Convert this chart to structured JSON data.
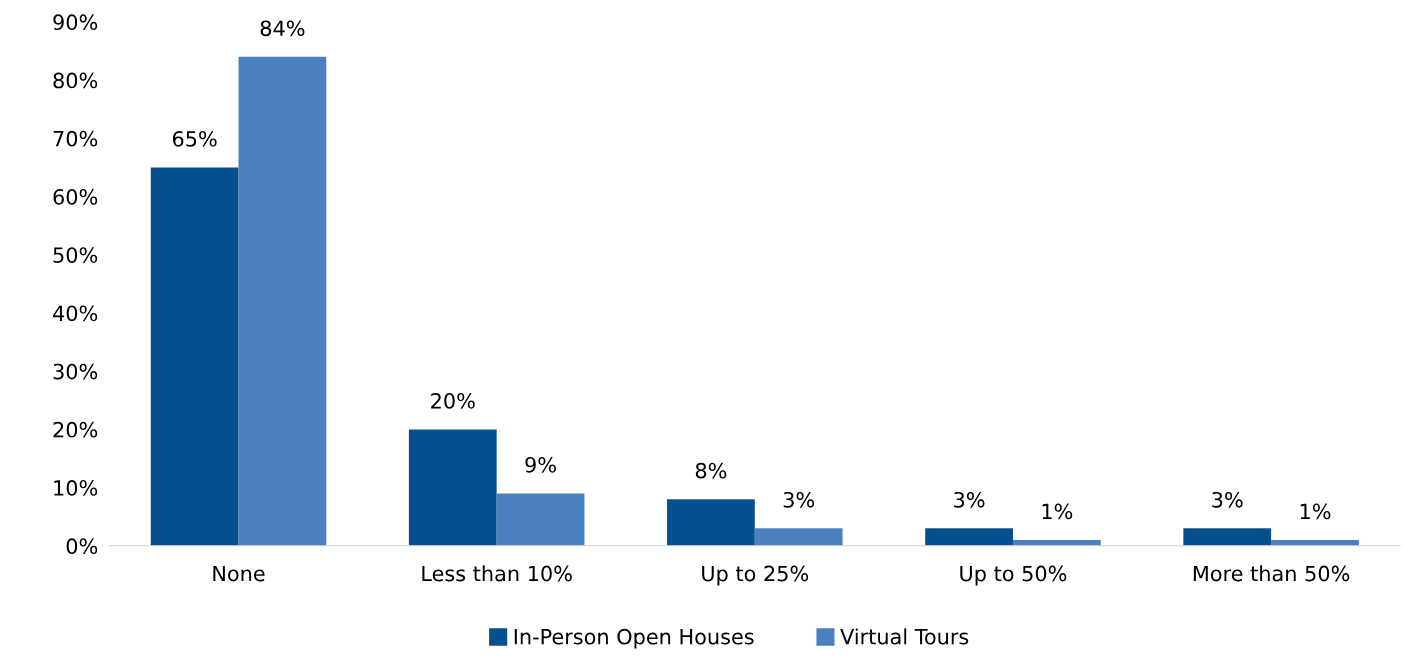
{
  "chart_data": {
    "type": "bar",
    "categories": [
      "None",
      "Less than 10%",
      "Up to 25%",
      "Up to 50%",
      "More than 50%"
    ],
    "series": [
      {
        "name": "In-Person Open Houses",
        "color": "#07508f",
        "values": [
          65,
          20,
          8,
          3,
          3
        ],
        "value_labels": [
          "65%",
          "20%",
          "8%",
          "3%",
          "3%"
        ]
      },
      {
        "name": "Virtual Tours",
        "color": "#4a7fc0",
        "values": [
          84,
          9,
          3,
          1,
          1
        ],
        "value_labels": [
          "84%",
          "9%",
          "3%",
          "1%",
          "1%"
        ]
      }
    ],
    "ylim": [
      0,
      90
    ],
    "yticks": [
      {
        "value": 0,
        "label": "0%"
      },
      {
        "value": 10,
        "label": "10%"
      },
      {
        "value": 20,
        "label": "20%"
      },
      {
        "value": 30,
        "label": "30%"
      },
      {
        "value": 40,
        "label": "40%"
      },
      {
        "value": 50,
        "label": "50%"
      },
      {
        "value": 60,
        "label": "60%"
      },
      {
        "value": 70,
        "label": "70%"
      },
      {
        "value": 80,
        "label": "80%"
      },
      {
        "value": 90,
        "label": "90%"
      }
    ],
    "grid": false,
    "legend": "bottom"
  }
}
